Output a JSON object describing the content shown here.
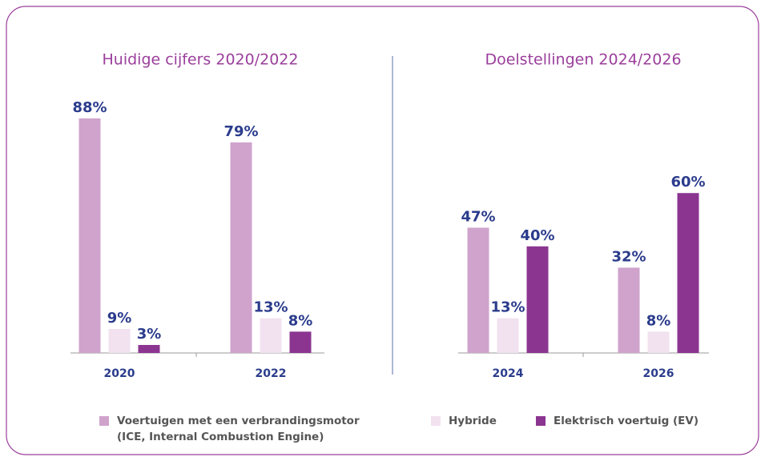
{
  "legend": [
    {
      "name": "Voertuigen met een verbrandingsmotor (ICE, Internal Combustion Engine)",
      "color": "#cfa3cc"
    },
    {
      "name": "Hybride",
      "color": "#f2e2f0"
    },
    {
      "name": "Elektrisch voertuig (EV)",
      "color": "#8b3591"
    }
  ],
  "chart_data": [
    {
      "type": "bar",
      "title": "Huidige cijfers 2020/2022",
      "categories": [
        "2020",
        "2022"
      ],
      "series": [
        {
          "values": [
            88,
            79
          ],
          "value_labels": [
            "88%",
            "79%"
          ]
        },
        {
          "values": [
            9,
            13
          ],
          "value_labels": [
            "9%",
            "13%"
          ]
        },
        {
          "values": [
            3,
            8
          ],
          "value_labels": [
            "3%",
            "8%"
          ]
        }
      ]
    },
    {
      "type": "bar",
      "title": "Doelstellingen 2024/2026",
      "categories": [
        "2024",
        "2026"
      ],
      "series": [
        {
          "values": [
            47,
            32
          ],
          "value_labels": [
            "47%",
            "32%"
          ]
        },
        {
          "values": [
            13,
            8
          ],
          "value_labels": [
            "13%",
            "8%"
          ]
        },
        {
          "values": [
            40,
            60
          ],
          "value_labels": [
            "40%",
            "60%"
          ]
        }
      ]
    }
  ]
}
